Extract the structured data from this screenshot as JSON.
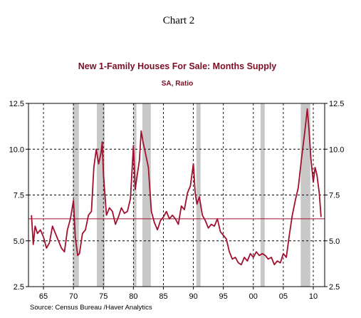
{
  "header": {
    "doc_label": "Chart 2"
  },
  "chart_data": {
    "type": "line",
    "title": "New 1-Family Houses For Sale: Months Supply",
    "subtitle": "SA, Ratio",
    "source": "Source:  Census Bureau /Haver Analytics",
    "xlim": [
      1962.5,
      2011.9
    ],
    "ylim": [
      2.5,
      12.5
    ],
    "x_ticks": [
      1965,
      1970,
      1975,
      1980,
      1985,
      1990,
      1995,
      2000,
      2005,
      2010
    ],
    "x_tick_labels": [
      "65",
      "70",
      "75",
      "80",
      "85",
      "90",
      "95",
      "00",
      "05",
      "10"
    ],
    "y_ticks": [
      2.5,
      5.0,
      7.5,
      10.0,
      12.5
    ],
    "y_tick_labels": [
      "2.5",
      "5.0",
      "7.5",
      "10.0",
      "12.5"
    ],
    "grid": true,
    "recessions": [
      [
        1969.9,
        1970.9
      ],
      [
        1973.9,
        1975.2
      ],
      [
        1980.0,
        1980.5
      ],
      [
        1981.5,
        1982.9
      ],
      [
        1990.5,
        1991.2
      ],
      [
        2001.2,
        2001.9
      ],
      [
        2007.9,
        2009.5
      ]
    ],
    "reference_line": 6.2,
    "colors": {
      "series": "#a0102f",
      "reference": "#a0102f",
      "recession": "#c8c8c8"
    },
    "series": [
      {
        "x": [
          1963.0,
          1963.3,
          1963.6,
          1964.0,
          1964.5,
          1965.0,
          1965.5,
          1966.0,
          1966.5,
          1967.0,
          1967.5,
          1968.0,
          1968.5,
          1969.0,
          1969.5,
          1970.0,
          1970.3,
          1970.7,
          1971.0,
          1971.5,
          1972.0,
          1972.5,
          1973.0,
          1973.4,
          1973.8,
          1974.2,
          1974.6,
          1974.8,
          1975.0,
          1975.5,
          1976.0,
          1976.5,
          1977.0,
          1977.5,
          1978.0,
          1978.5,
          1979.0,
          1979.5,
          1980.0,
          1980.3,
          1980.6,
          1981.0,
          1981.3,
          1981.6,
          1982.0,
          1982.5,
          1983.0,
          1983.5,
          1984.0,
          1984.5,
          1985.0,
          1985.5,
          1986.0,
          1986.5,
          1987.0,
          1987.5,
          1988.0,
          1988.5,
          1989.0,
          1989.5,
          1990.0,
          1990.3,
          1990.6,
          1991.0,
          1991.5,
          1992.0,
          1992.5,
          1993.0,
          1993.5,
          1994.0,
          1994.5,
          1995.0,
          1995.5,
          1996.0,
          1996.5,
          1997.0,
          1997.5,
          1998.0,
          1998.5,
          1999.0,
          1999.5,
          2000.0,
          2000.5,
          2001.0,
          2001.5,
          2002.0,
          2002.5,
          2003.0,
          2003.5,
          2004.0,
          2004.5,
          2005.0,
          2005.5,
          2006.0,
          2006.5,
          2007.0,
          2007.5,
          2008.0,
          2008.3,
          2008.6,
          2009.0,
          2009.3,
          2009.6,
          2010.0,
          2010.3,
          2010.6,
          2011.0,
          2011.3
        ],
        "values": [
          6.4,
          4.8,
          5.8,
          5.4,
          5.6,
          5.2,
          4.6,
          4.9,
          5.8,
          5.4,
          5.0,
          4.6,
          4.4,
          5.6,
          6.2,
          7.2,
          5.2,
          4.2,
          4.3,
          5.4,
          5.6,
          6.4,
          6.6,
          9.0,
          10.0,
          9.2,
          9.8,
          10.4,
          8.6,
          6.4,
          6.8,
          6.6,
          5.9,
          6.3,
          6.8,
          6.5,
          6.6,
          7.3,
          10.2,
          7.8,
          8.5,
          9.4,
          11.0,
          10.4,
          9.8,
          9.0,
          6.6,
          6.0,
          5.6,
          6.1,
          6.3,
          6.6,
          6.2,
          6.4,
          6.2,
          5.9,
          6.9,
          6.7,
          7.6,
          8.0,
          9.2,
          7.6,
          7.0,
          7.4,
          6.4,
          6.1,
          5.7,
          5.9,
          5.8,
          6.2,
          5.5,
          5.3,
          5.1,
          4.4,
          4.0,
          4.1,
          3.8,
          3.7,
          4.1,
          3.9,
          4.3,
          4.1,
          4.4,
          4.2,
          4.3,
          4.2,
          4.0,
          4.1,
          3.7,
          3.9,
          3.8,
          4.3,
          4.1,
          5.3,
          6.4,
          7.2,
          7.9,
          9.4,
          10.2,
          11.0,
          12.2,
          11.0,
          9.5,
          8.2,
          9.0,
          8.6,
          7.6,
          6.3
        ]
      }
    ]
  }
}
